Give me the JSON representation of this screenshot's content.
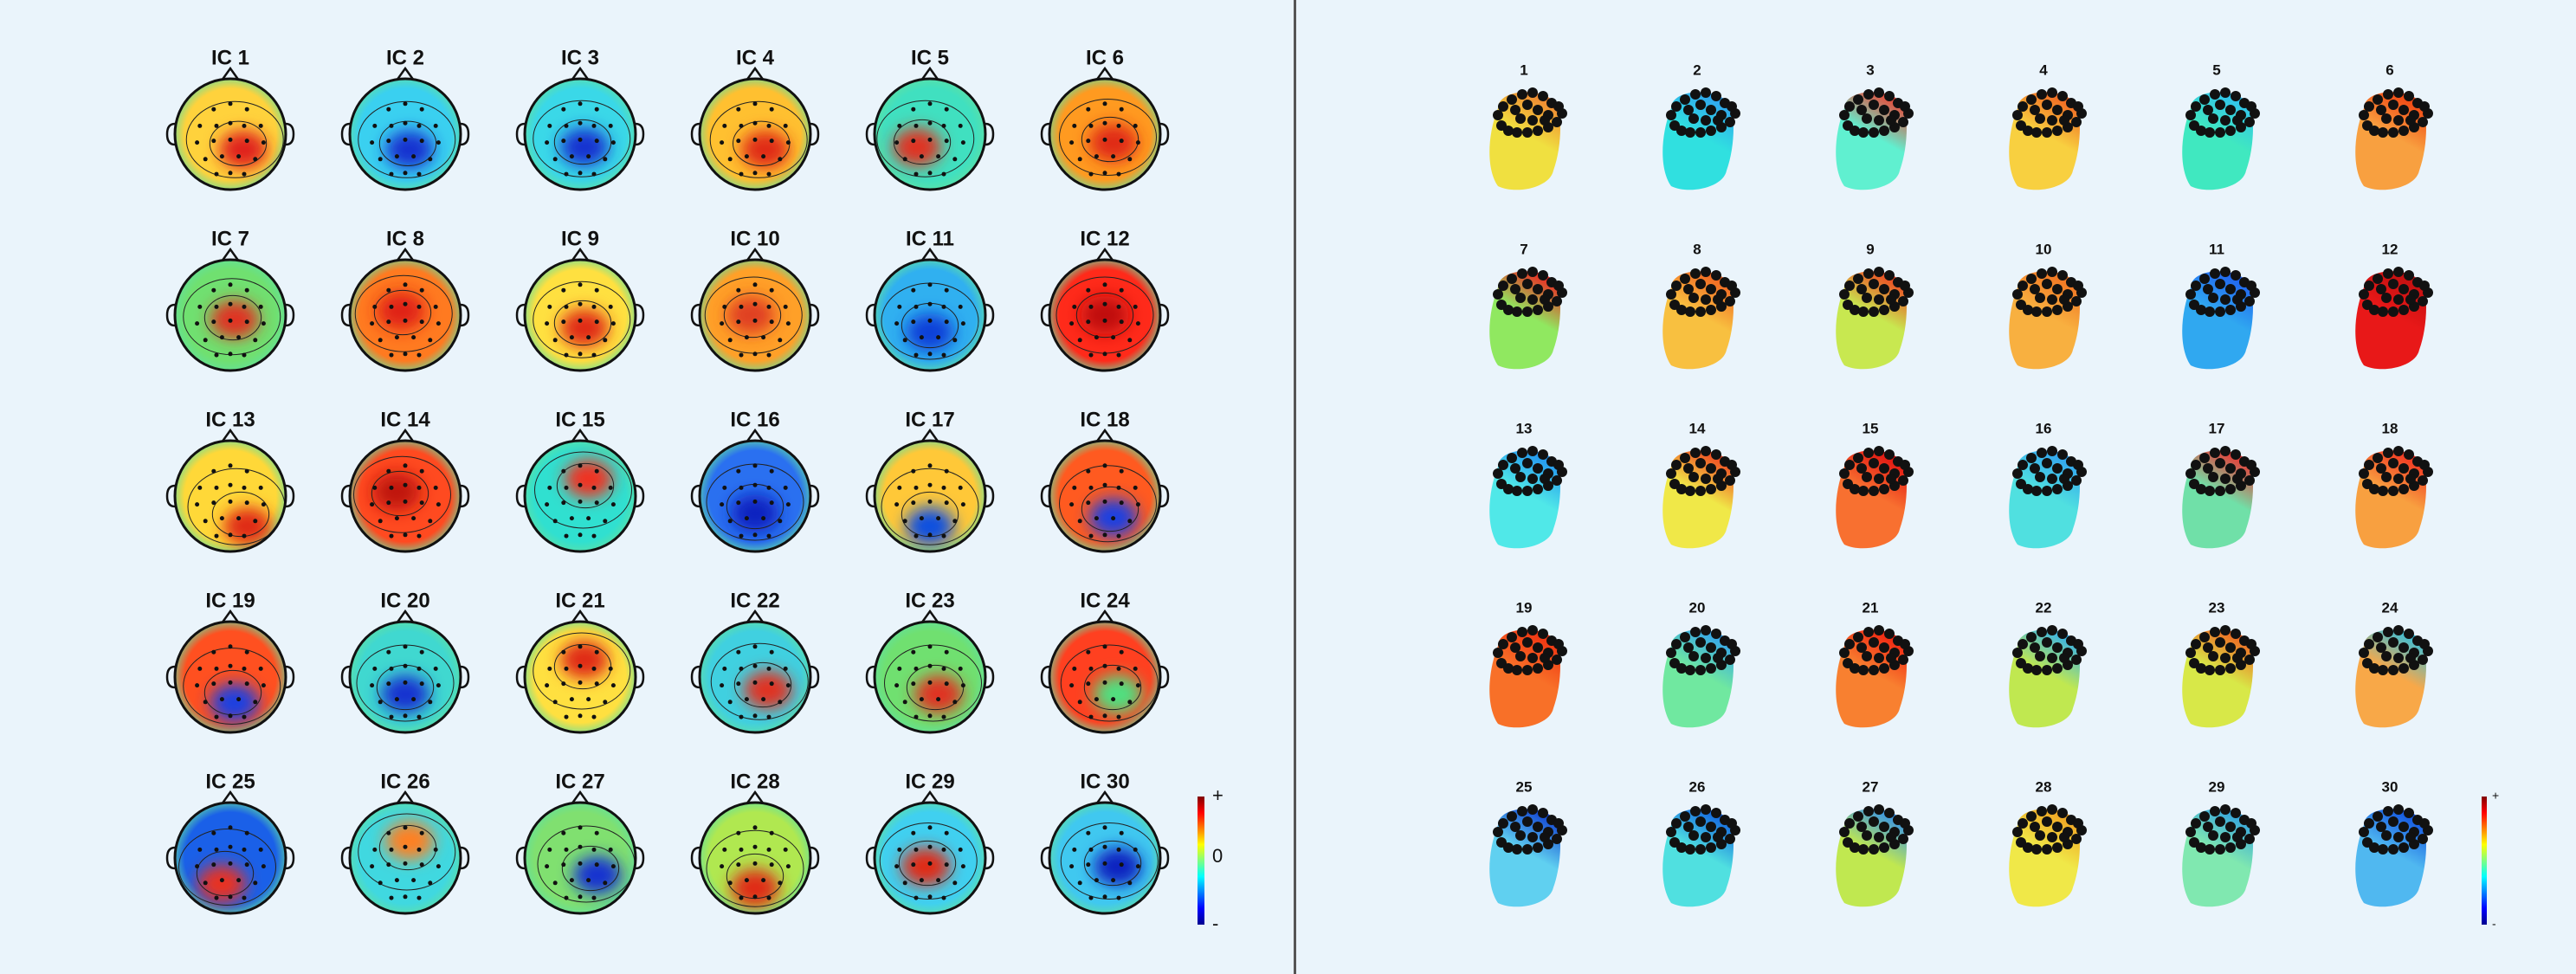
{
  "topoplot_window": {
    "labels": [
      "IC 1",
      "IC 2",
      "IC 3",
      "IC 4",
      "IC 5",
      "IC 6",
      "IC 7",
      "IC 8",
      "IC 9",
      "IC 10",
      "IC 11",
      "IC 12",
      "IC 13",
      "IC 14",
      "IC 15",
      "IC 16",
      "IC 17",
      "IC 18",
      "IC 19",
      "IC 20",
      "IC 21",
      "IC 22",
      "IC 23",
      "IC 24",
      "IC 25",
      "IC 26",
      "IC 27",
      "IC 28",
      "IC 29",
      "IC 30"
    ],
    "colorbar_labels": [
      "+",
      "0",
      "-"
    ]
  },
  "headplot_window": {
    "labels": [
      "1",
      "2",
      "3",
      "4",
      "5",
      "6",
      "7",
      "8",
      "9",
      "10",
      "11",
      "12",
      "13",
      "14",
      "15",
      "16",
      "17",
      "18",
      "19",
      "20",
      "21",
      "22",
      "23",
      "24",
      "25",
      "26",
      "27",
      "28",
      "29",
      "30"
    ],
    "colorbar_labels": [
      "+",
      "-"
    ]
  }
}
